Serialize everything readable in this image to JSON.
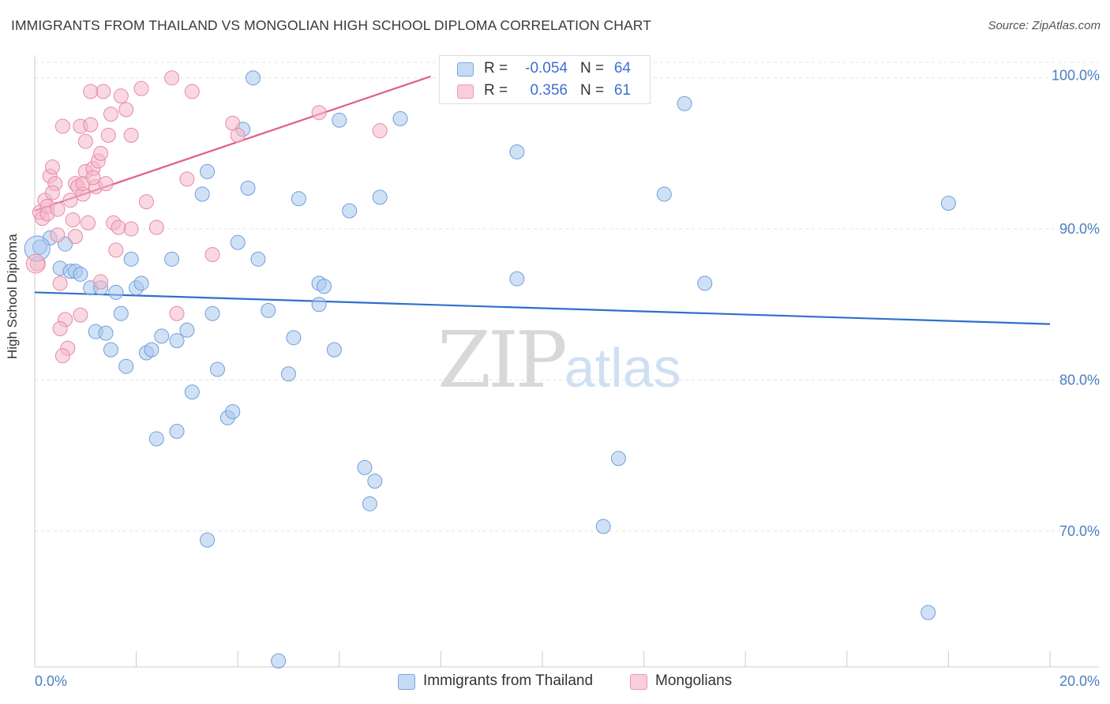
{
  "header": {
    "title": "IMMIGRANTS FROM THAILAND VS MONGOLIAN HIGH SCHOOL DIPLOMA CORRELATION CHART",
    "source": "Source: ZipAtlas.com"
  },
  "watermark": {
    "zip": "ZIP",
    "atlas": "atlas"
  },
  "legend": {
    "rows": [
      {
        "r_label": "R =",
        "r_value": "-0.054",
        "n_label": "N =",
        "n_value": "64",
        "color": "#a9c8ef"
      },
      {
        "r_label": "R =",
        "r_value": "0.356",
        "n_label": "N =",
        "n_value": "61",
        "color": "#f4b8cb"
      }
    ]
  },
  "bottom_legend": {
    "items": [
      {
        "label": "Immigrants from Thailand",
        "color": "#a9c8ef"
      },
      {
        "label": "Mongolians",
        "color": "#f4b8cb"
      }
    ]
  },
  "chart_data": {
    "type": "scatter",
    "title": "IMMIGRANTS FROM THAILAND VS MONGOLIAN HIGH SCHOOL DIPLOMA CORRELATION CHART",
    "xlabel": "",
    "ylabel": "High School Diploma",
    "xlim": [
      0,
      20
    ],
    "ylim": [
      61,
      101.5
    ],
    "x_tick_labels": [
      "0.0%",
      "20.0%"
    ],
    "y_ticks": [
      70,
      80,
      90,
      100
    ],
    "y_tick_labels": [
      "70.0%",
      "80.0%",
      "90.0%",
      "100.0%"
    ],
    "grid": true,
    "legend_position": "top-center",
    "series": [
      {
        "name": "Immigrants from Thailand",
        "color": "#a9c8ef",
        "stroke": "#6f9fd8",
        "trend": {
          "x": [
            0,
            20
          ],
          "y": [
            85.8,
            83.7
          ],
          "color": "#2f6fcc"
        },
        "points": [
          [
            0.1,
            88.8
          ],
          [
            0.3,
            89.4
          ],
          [
            0.6,
            89.0
          ],
          [
            0.5,
            87.4
          ],
          [
            0.7,
            87.2
          ],
          [
            0.8,
            87.2
          ],
          [
            0.9,
            87.0
          ],
          [
            1.1,
            86.1
          ],
          [
            1.3,
            86.1
          ],
          [
            1.6,
            85.8
          ],
          [
            1.7,
            84.4
          ],
          [
            1.9,
            88.0
          ],
          [
            2.0,
            86.1
          ],
          [
            2.1,
            86.4
          ],
          [
            1.2,
            83.2
          ],
          [
            1.4,
            83.1
          ],
          [
            1.5,
            82.0
          ],
          [
            2.2,
            81.8
          ],
          [
            2.3,
            82.0
          ],
          [
            2.5,
            82.9
          ],
          [
            2.8,
            82.6
          ],
          [
            3.0,
            83.3
          ],
          [
            2.7,
            88.0
          ],
          [
            3.1,
            79.2
          ],
          [
            3.5,
            84.4
          ],
          [
            3.3,
            92.3
          ],
          [
            3.4,
            93.8
          ],
          [
            3.8,
            77.5
          ],
          [
            3.9,
            77.9
          ],
          [
            4.0,
            89.1
          ],
          [
            4.1,
            96.6
          ],
          [
            4.2,
            92.7
          ],
          [
            4.4,
            88.0
          ],
          [
            4.6,
            84.6
          ],
          [
            5.1,
            82.8
          ],
          [
            5.2,
            92.0
          ],
          [
            5.6,
            85.0
          ],
          [
            5.6,
            86.4
          ],
          [
            5.7,
            86.2
          ],
          [
            5.9,
            82.0
          ],
          [
            6.0,
            97.2
          ],
          [
            6.2,
            91.2
          ],
          [
            6.5,
            74.2
          ],
          [
            6.7,
            73.3
          ],
          [
            6.6,
            71.8
          ],
          [
            6.8,
            92.1
          ],
          [
            7.2,
            97.3
          ],
          [
            9.5,
            95.1
          ],
          [
            9.5,
            86.7
          ],
          [
            11.5,
            74.8
          ],
          [
            11.2,
            70.3
          ],
          [
            12.4,
            92.3
          ],
          [
            12.8,
            98.3
          ],
          [
            13.2,
            86.4
          ],
          [
            18.0,
            91.7
          ],
          [
            17.6,
            64.6
          ],
          [
            2.4,
            76.1
          ],
          [
            2.8,
            76.6
          ],
          [
            3.4,
            69.4
          ],
          [
            4.8,
            61.4
          ],
          [
            4.3,
            100.0
          ],
          [
            1.8,
            80.9
          ],
          [
            5.0,
            80.4
          ],
          [
            3.6,
            80.7
          ]
        ]
      },
      {
        "name": "Mongolians",
        "color": "#f4b8cb",
        "stroke": "#e68aa6",
        "trend": {
          "x": [
            0,
            7.8
          ],
          "y": [
            91.2,
            100.1
          ],
          "color": "#e0608a"
        },
        "points": [
          [
            0.05,
            87.7
          ],
          [
            0.1,
            91.1
          ],
          [
            0.15,
            90.7
          ],
          [
            0.2,
            91.9
          ],
          [
            0.25,
            91.5
          ],
          [
            0.3,
            93.5
          ],
          [
            0.35,
            94.1
          ],
          [
            0.4,
            93.0
          ],
          [
            0.45,
            89.6
          ],
          [
            0.5,
            86.4
          ],
          [
            0.55,
            96.8
          ],
          [
            0.6,
            84.0
          ],
          [
            0.65,
            82.1
          ],
          [
            0.7,
            91.9
          ],
          [
            0.75,
            90.6
          ],
          [
            0.8,
            93.0
          ],
          [
            0.85,
            92.8
          ],
          [
            0.9,
            96.8
          ],
          [
            0.95,
            92.3
          ],
          [
            1.0,
            93.8
          ],
          [
            1.0,
            95.8
          ],
          [
            1.05,
            90.4
          ],
          [
            1.1,
            96.9
          ],
          [
            1.15,
            94.0
          ],
          [
            1.2,
            92.8
          ],
          [
            1.25,
            94.5
          ],
          [
            1.3,
            95.0
          ],
          [
            1.35,
            99.1
          ],
          [
            1.4,
            93.0
          ],
          [
            1.45,
            96.2
          ],
          [
            1.5,
            97.6
          ],
          [
            1.55,
            90.4
          ],
          [
            1.6,
            88.6
          ],
          [
            1.65,
            90.1
          ],
          [
            1.7,
            98.8
          ],
          [
            1.8,
            97.9
          ],
          [
            1.9,
            96.2
          ],
          [
            2.1,
            99.3
          ],
          [
            2.2,
            91.8
          ],
          [
            2.4,
            90.1
          ],
          [
            2.7,
            100.0
          ],
          [
            2.8,
            84.4
          ],
          [
            3.0,
            93.3
          ],
          [
            3.1,
            99.1
          ],
          [
            3.5,
            88.3
          ],
          [
            3.9,
            97.0
          ],
          [
            4.0,
            96.2
          ],
          [
            5.6,
            97.7
          ],
          [
            6.8,
            96.5
          ],
          [
            1.1,
            99.1
          ],
          [
            0.9,
            84.3
          ],
          [
            0.5,
            83.4
          ],
          [
            0.55,
            81.6
          ],
          [
            1.3,
            86.5
          ],
          [
            1.9,
            90.0
          ],
          [
            0.8,
            89.5
          ],
          [
            0.35,
            92.4
          ],
          [
            0.25,
            91.0
          ],
          [
            0.45,
            91.3
          ],
          [
            0.95,
            93.0
          ],
          [
            1.15,
            93.4
          ]
        ]
      }
    ]
  }
}
